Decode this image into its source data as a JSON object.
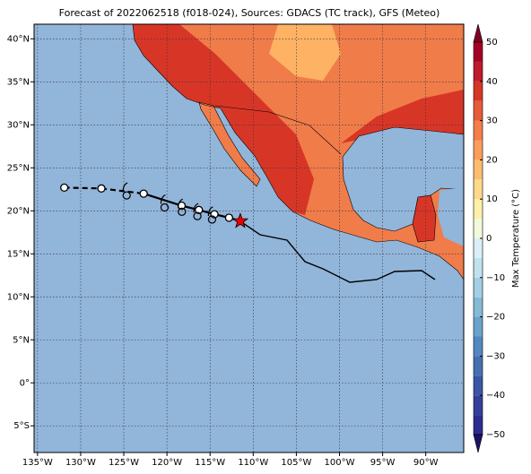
{
  "title": "Forecast of 2022062518 (f018-024), Sources: GDACS (TC track), GFS (Meteo)",
  "map": {
    "xlim": [
      -135.4,
      -85.6
    ],
    "ylim": [
      -8.1,
      41.7
    ],
    "xticks": [
      {
        "value": -135,
        "label": "135°W"
      },
      {
        "value": -130,
        "label": "130°W"
      },
      {
        "value": -125,
        "label": "125°W"
      },
      {
        "value": -120,
        "label": "120°W"
      },
      {
        "value": -115,
        "label": "115°W"
      },
      {
        "value": -110,
        "label": "110°W"
      },
      {
        "value": -105,
        "label": "105°W"
      },
      {
        "value": -100,
        "label": "100°W"
      },
      {
        "value": -95,
        "label": "95°W"
      },
      {
        "value": -90,
        "label": "90°W"
      }
    ],
    "yticks": [
      {
        "value": 40,
        "label": "40°N"
      },
      {
        "value": 35,
        "label": "35°N"
      },
      {
        "value": 30,
        "label": "30°N"
      },
      {
        "value": 25,
        "label": "25°N"
      },
      {
        "value": 20,
        "label": "20°N"
      },
      {
        "value": 15,
        "label": "15°N"
      },
      {
        "value": 10,
        "label": "10°N"
      },
      {
        "value": 5,
        "label": "5°N"
      },
      {
        "value": 0,
        "label": "0°"
      },
      {
        "value": -5,
        "label": "5°S"
      }
    ],
    "grid": true,
    "track": {
      "lon": [
        -131.9,
        -127.6,
        -122.7,
        -118.3,
        -116.3,
        -114.5,
        -112.8,
        -111.5
      ],
      "lat": [
        22.7,
        22.6,
        22.0,
        20.6,
        20.1,
        19.6,
        19.2,
        18.8
      ]
    }
  },
  "colorbar": {
    "label": "Max Temperature (°C)",
    "lim": [
      -50,
      50
    ],
    "ticks": [
      {
        "value": -50,
        "label": "−50"
      },
      {
        "value": -40,
        "label": "−40"
      },
      {
        "value": -30,
        "label": "−30"
      },
      {
        "value": -20,
        "label": "−20"
      },
      {
        "value": -10,
        "label": "−10"
      },
      0,
      10,
      20,
      30,
      40,
      50
    ],
    "step": 5,
    "colors": [
      "#2c2d8f",
      "#343f9c",
      "#3b55a4",
      "#4470b0",
      "#5289bf",
      "#6aa2cc",
      "#85b9d8",
      "#a2cfe4",
      "#bfe2ee",
      "#daf0f6",
      "#f3fadb",
      "#fef0a8",
      "#fed98b",
      "#fdbd70",
      "#fb9d59",
      "#f57d4a",
      "#e75a3a",
      "#d73627",
      "#be1a2b",
      "#a50026"
    ],
    "under": "#1b1464",
    "over": "#800026"
  }
}
